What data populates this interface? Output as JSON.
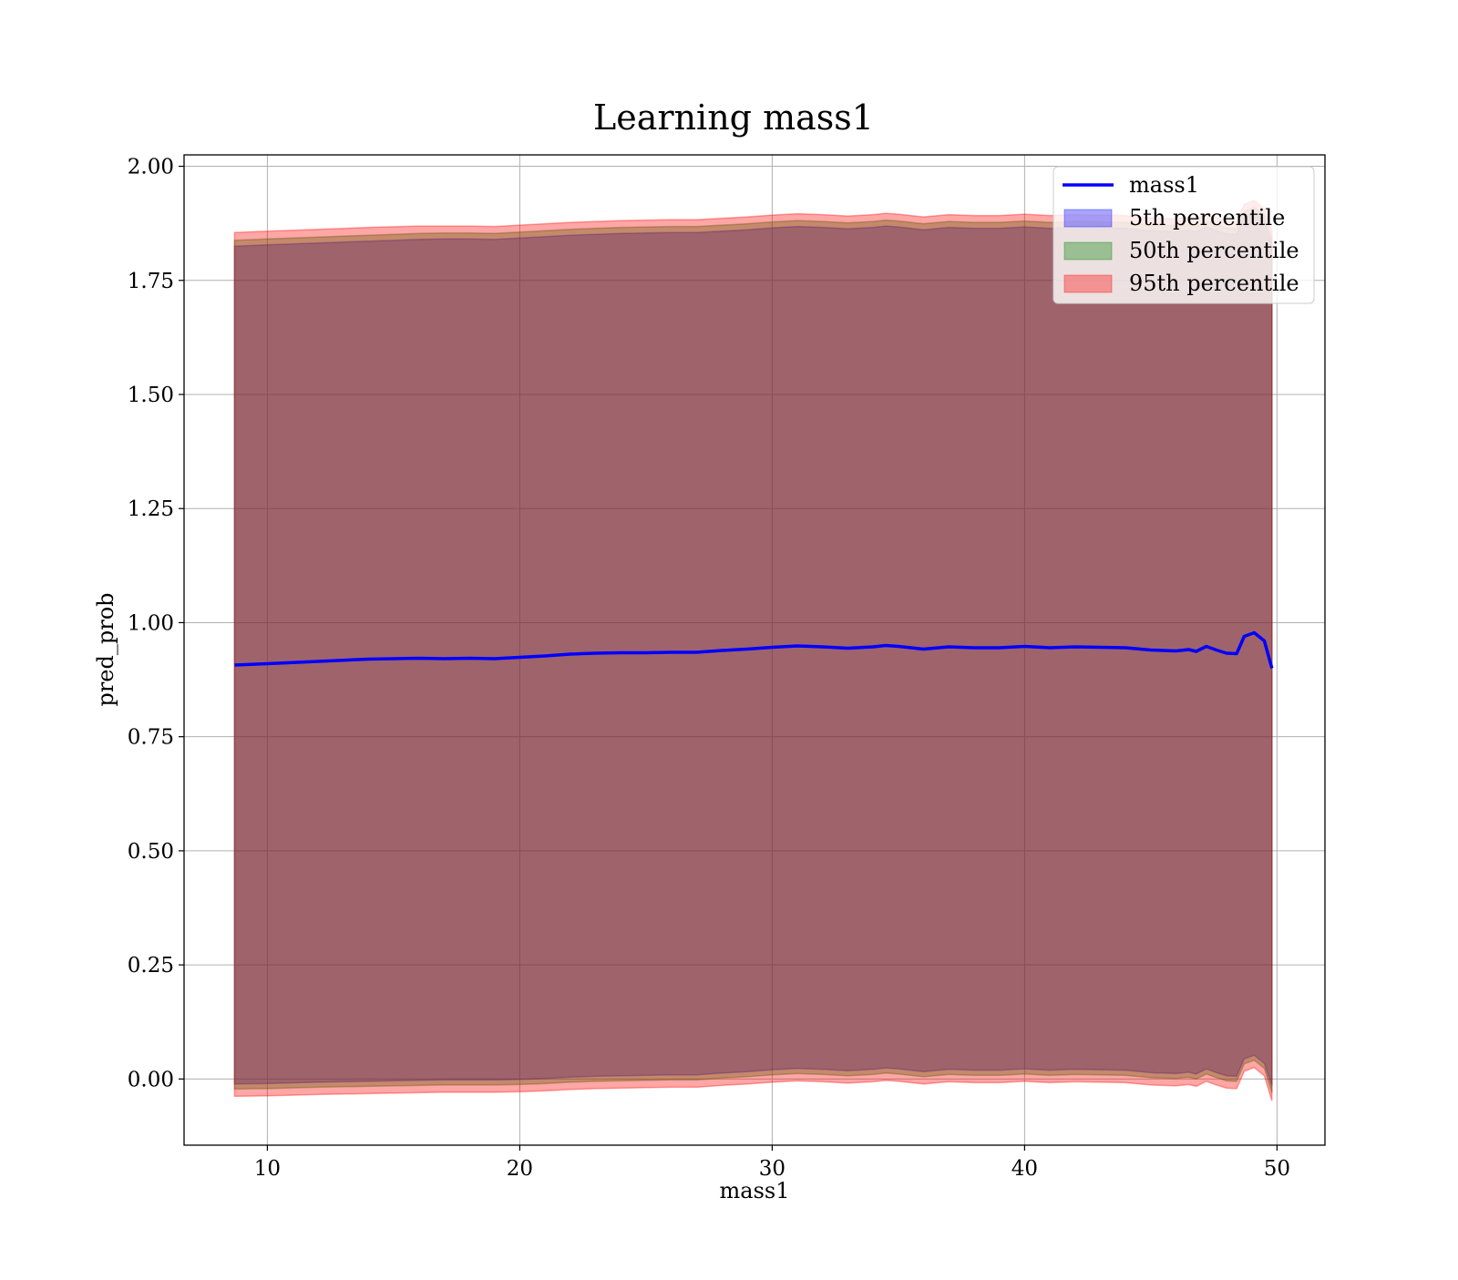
{
  "chart_data": {
    "type": "area",
    "title": "Learning mass1",
    "xlabel": "mass1",
    "ylabel": "pred_prob",
    "xlim": [
      6.7,
      51.9
    ],
    "ylim": [
      -0.145,
      2.025
    ],
    "x_ticks": [
      10,
      20,
      30,
      40,
      50
    ],
    "x_tick_labels": [
      "10",
      "20",
      "30",
      "40",
      "50"
    ],
    "y_ticks": [
      0.0,
      0.25,
      0.5,
      0.75,
      1.0,
      1.25,
      1.5,
      1.75,
      2.0
    ],
    "y_tick_labels": [
      "0.00",
      "0.25",
      "0.50",
      "0.75",
      "1.00",
      "1.25",
      "1.50",
      "1.75",
      "2.00"
    ],
    "grid": true,
    "legend_position": "top-right",
    "x": [
      8.7,
      10,
      12,
      14,
      16,
      17,
      18,
      19,
      20,
      21,
      22,
      23,
      24,
      25,
      26,
      27,
      28,
      29,
      30,
      31,
      32,
      33,
      34,
      34.5,
      35,
      36,
      37,
      38,
      39,
      40,
      41,
      42,
      43,
      44,
      45,
      46,
      46.5,
      46.8,
      47.2,
      47.6,
      48,
      48.4,
      48.7,
      49.1,
      49.5,
      49.8
    ],
    "series": [
      {
        "name": "mass1",
        "kind": "line",
        "color": "#0000ff",
        "values": [
          0.907,
          0.91,
          0.915,
          0.92,
          0.922,
          0.921,
          0.922,
          0.921,
          0.924,
          0.927,
          0.931,
          0.933,
          0.934,
          0.934,
          0.935,
          0.935,
          0.939,
          0.942,
          0.946,
          0.949,
          0.947,
          0.944,
          0.947,
          0.95,
          0.948,
          0.942,
          0.947,
          0.945,
          0.945,
          0.948,
          0.945,
          0.947,
          0.946,
          0.945,
          0.94,
          0.938,
          0.941,
          0.937,
          0.948,
          0.94,
          0.933,
          0.932,
          0.97,
          0.978,
          0.96,
          0.9
        ]
      },
      {
        "name": "5th percentile",
        "kind": "band",
        "color": "#0000ff",
        "lower": [
          -0.011,
          -0.01,
          -0.007,
          -0.005,
          -0.003,
          -0.002,
          -0.002,
          -0.002,
          -0.001,
          0.001,
          0.004,
          0.006,
          0.007,
          0.008,
          0.009,
          0.009,
          0.013,
          0.016,
          0.02,
          0.023,
          0.021,
          0.018,
          0.021,
          0.024,
          0.022,
          0.016,
          0.021,
          0.019,
          0.019,
          0.022,
          0.019,
          0.021,
          0.02,
          0.019,
          0.014,
          0.012,
          0.015,
          0.011,
          0.022,
          0.014,
          0.007,
          0.006,
          0.044,
          0.052,
          0.034,
          -0.015
        ],
        "upper": [
          1.825,
          1.828,
          1.832,
          1.836,
          1.84,
          1.841,
          1.841,
          1.84,
          1.843,
          1.846,
          1.849,
          1.851,
          1.853,
          1.854,
          1.855,
          1.855,
          1.858,
          1.861,
          1.865,
          1.868,
          1.866,
          1.863,
          1.866,
          1.869,
          1.867,
          1.861,
          1.866,
          1.864,
          1.864,
          1.867,
          1.864,
          1.866,
          1.865,
          1.864,
          1.859,
          1.857,
          1.86,
          1.856,
          1.867,
          1.859,
          1.852,
          1.851,
          1.889,
          1.897,
          1.879,
          1.83
        ]
      },
      {
        "name": "50th percentile",
        "kind": "band",
        "color": "#008000",
        "lower": [
          -0.022,
          -0.021,
          -0.018,
          -0.016,
          -0.014,
          -0.013,
          -0.013,
          -0.013,
          -0.012,
          -0.01,
          -0.007,
          -0.005,
          -0.004,
          -0.003,
          -0.002,
          -0.002,
          0.002,
          0.005,
          0.009,
          0.012,
          0.01,
          0.007,
          0.01,
          0.013,
          0.011,
          0.005,
          0.01,
          0.008,
          0.008,
          0.011,
          0.008,
          0.01,
          0.009,
          0.008,
          0.003,
          0.001,
          0.004,
          0.0,
          0.011,
          0.003,
          -0.004,
          -0.005,
          0.033,
          0.041,
          0.023,
          -0.03
        ],
        "upper": [
          1.838,
          1.841,
          1.845,
          1.849,
          1.853,
          1.854,
          1.854,
          1.853,
          1.856,
          1.859,
          1.862,
          1.864,
          1.866,
          1.867,
          1.868,
          1.868,
          1.871,
          1.874,
          1.878,
          1.881,
          1.879,
          1.876,
          1.879,
          1.882,
          1.88,
          1.874,
          1.879,
          1.877,
          1.877,
          1.88,
          1.877,
          1.879,
          1.878,
          1.877,
          1.872,
          1.87,
          1.873,
          1.869,
          1.88,
          1.872,
          1.865,
          1.864,
          1.902,
          1.91,
          1.892,
          1.843
        ]
      },
      {
        "name": "95th percentile",
        "kind": "band",
        "color": "#ff0000",
        "lower": [
          -0.038,
          -0.037,
          -0.034,
          -0.032,
          -0.03,
          -0.029,
          -0.029,
          -0.029,
          -0.028,
          -0.026,
          -0.023,
          -0.021,
          -0.02,
          -0.019,
          -0.018,
          -0.018,
          -0.014,
          -0.011,
          -0.007,
          -0.004,
          -0.006,
          -0.009,
          -0.006,
          -0.003,
          -0.005,
          -0.011,
          -0.006,
          -0.008,
          -0.008,
          -0.005,
          -0.008,
          -0.006,
          -0.007,
          -0.008,
          -0.013,
          -0.015,
          -0.012,
          -0.016,
          -0.005,
          -0.013,
          -0.02,
          -0.021,
          0.017,
          0.025,
          0.007,
          -0.048
        ],
        "upper": [
          1.855,
          1.858,
          1.862,
          1.866,
          1.869,
          1.869,
          1.869,
          1.868,
          1.871,
          1.874,
          1.877,
          1.879,
          1.881,
          1.882,
          1.883,
          1.883,
          1.886,
          1.889,
          1.893,
          1.896,
          1.894,
          1.891,
          1.894,
          1.897,
          1.895,
          1.889,
          1.894,
          1.892,
          1.892,
          1.895,
          1.892,
          1.894,
          1.893,
          1.892,
          1.887,
          1.885,
          1.888,
          1.884,
          1.895,
          1.887,
          1.88,
          1.879,
          1.917,
          1.925,
          1.907,
          1.858
        ]
      }
    ]
  }
}
